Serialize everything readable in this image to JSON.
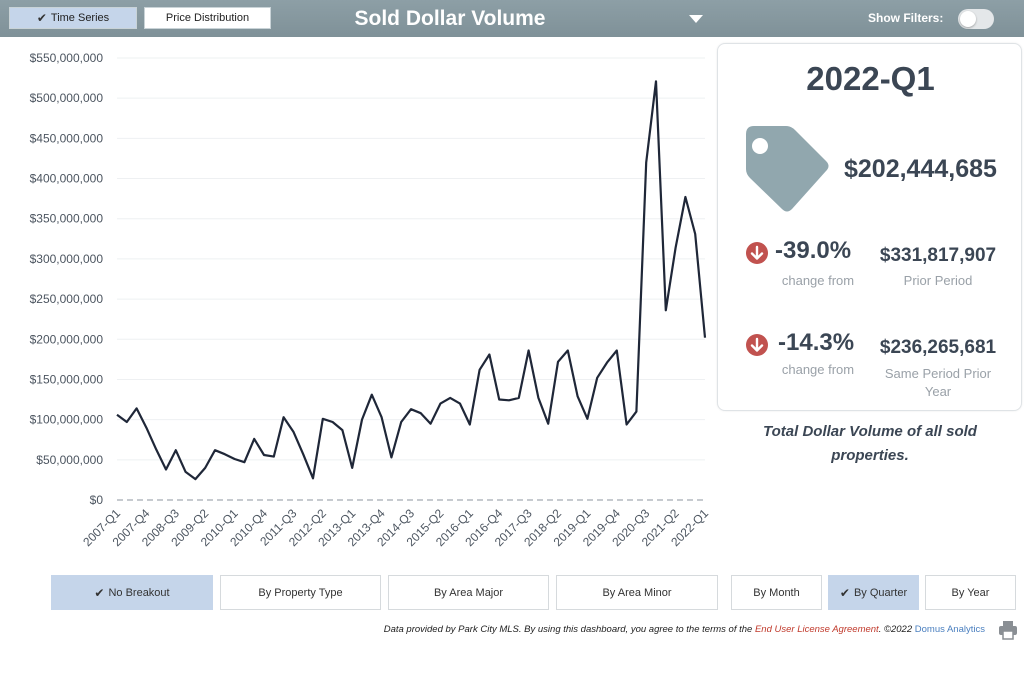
{
  "header": {
    "tabs": [
      {
        "label": "Time Series",
        "active": true
      },
      {
        "label": "Price Distribution",
        "active": false
      }
    ],
    "title": "Sold Dollar Volume",
    "filters_label": "Show Filters:",
    "filters_on": false
  },
  "chart_data": {
    "type": "line",
    "title": "",
    "xlabel": "",
    "ylabel": "",
    "ylim": [
      0,
      550000000
    ],
    "yticks": [
      "$0",
      "$50,000,000",
      "$100,000,000",
      "$150,000,000",
      "$200,000,000",
      "$250,000,000",
      "$300,000,000",
      "$350,000,000",
      "$400,000,000",
      "$450,000,000",
      "$500,000,000",
      "$550,000,000"
    ],
    "xtick_labels": [
      "2007-Q1",
      "2007-Q4",
      "2008-Q3",
      "2009-Q2",
      "2010-Q1",
      "2010-Q4",
      "2011-Q3",
      "2012-Q2",
      "2013-Q1",
      "2013-Q4",
      "2014-Q3",
      "2015-Q2",
      "2016-Q1",
      "2016-Q4",
      "2017-Q3",
      "2018-Q2",
      "2019-Q1",
      "2019-Q4",
      "2020-Q3",
      "2021-Q2",
      "2022-Q1"
    ],
    "x": [
      "2007-Q1",
      "2007-Q2",
      "2007-Q3",
      "2007-Q4",
      "2008-Q1",
      "2008-Q2",
      "2008-Q3",
      "2008-Q4",
      "2009-Q1",
      "2009-Q2",
      "2009-Q3",
      "2009-Q4",
      "2010-Q1",
      "2010-Q2",
      "2010-Q3",
      "2010-Q4",
      "2011-Q1",
      "2011-Q2",
      "2011-Q3",
      "2011-Q4",
      "2012-Q1",
      "2012-Q2",
      "2012-Q3",
      "2012-Q4",
      "2013-Q1",
      "2013-Q2",
      "2013-Q3",
      "2013-Q4",
      "2014-Q1",
      "2014-Q2",
      "2014-Q3",
      "2014-Q4",
      "2015-Q1",
      "2015-Q2",
      "2015-Q3",
      "2015-Q4",
      "2016-Q1",
      "2016-Q2",
      "2016-Q3",
      "2016-Q4",
      "2017-Q1",
      "2017-Q2",
      "2017-Q3",
      "2017-Q4",
      "2018-Q1",
      "2018-Q2",
      "2018-Q3",
      "2018-Q4",
      "2019-Q1",
      "2019-Q2",
      "2019-Q3",
      "2019-Q4",
      "2020-Q1",
      "2020-Q2",
      "2020-Q3",
      "2020-Q4",
      "2021-Q1",
      "2021-Q2",
      "2021-Q3",
      "2021-Q4",
      "2022-Q1"
    ],
    "series": [
      {
        "values": [
          106000000,
          97000000,
          114000000,
          90000000,
          63000000,
          38000000,
          62000000,
          35000000,
          26000000,
          40000000,
          62000000,
          57000000,
          51000000,
          47000000,
          76000000,
          56000000,
          54000000,
          103000000,
          85000000,
          57000000,
          27000000,
          101000000,
          97000000,
          87000000,
          40000000,
          100000000,
          131000000,
          103000000,
          53000000,
          97000000,
          113000000,
          108000000,
          95000000,
          120000000,
          127000000,
          120000000,
          94000000,
          162000000,
          181000000,
          125000000,
          124000000,
          127000000,
          186000000,
          127000000,
          95000000,
          172000000,
          186000000,
          129000000,
          101000000,
          152000000,
          171000000,
          186000000,
          94000000,
          110000000,
          420000000,
          521000000,
          236000000,
          314000000,
          377000000,
          331000000,
          202000000
        ]
      }
    ],
    "colors": {
      "line": "#1f2738",
      "zero_line": "#b3b9bf"
    }
  },
  "summary": {
    "period": "2022-Q1",
    "icon": "price-tag-icon",
    "value": "$202,444,685",
    "rows": [
      {
        "pct": "-39.0%",
        "change_label": "change from",
        "value": "$331,817,907",
        "label": "Prior Period"
      },
      {
        "pct": "-14.3%",
        "change_label": "change from",
        "value": "$236,265,681",
        "label": "Same Period Prior Year"
      }
    ],
    "caption": "Total Dollar Volume of all sold properties."
  },
  "breakouts": [
    {
      "label": "No Breakout",
      "active": true
    },
    {
      "label": "By Property Type",
      "active": false
    },
    {
      "label": "By Area Major",
      "active": false
    },
    {
      "label": "By Area Minor",
      "active": false
    }
  ],
  "periods": [
    {
      "label": "By Month",
      "active": false
    },
    {
      "label": "By Quarter",
      "active": true
    },
    {
      "label": "By Year",
      "active": false
    }
  ],
  "footer": {
    "text": "Data provided by Park City MLS.  By using this dashboard, you agree to the terms of the ",
    "license_link": "End User License Agreement",
    "copyright": ".  ©2022 ",
    "company_link": "Domus Analytics"
  },
  "colors": {
    "header": "#8a9ba2",
    "accent_active": "#c5d5ea",
    "down": "#c1524f",
    "tag": "#91a7ae"
  }
}
